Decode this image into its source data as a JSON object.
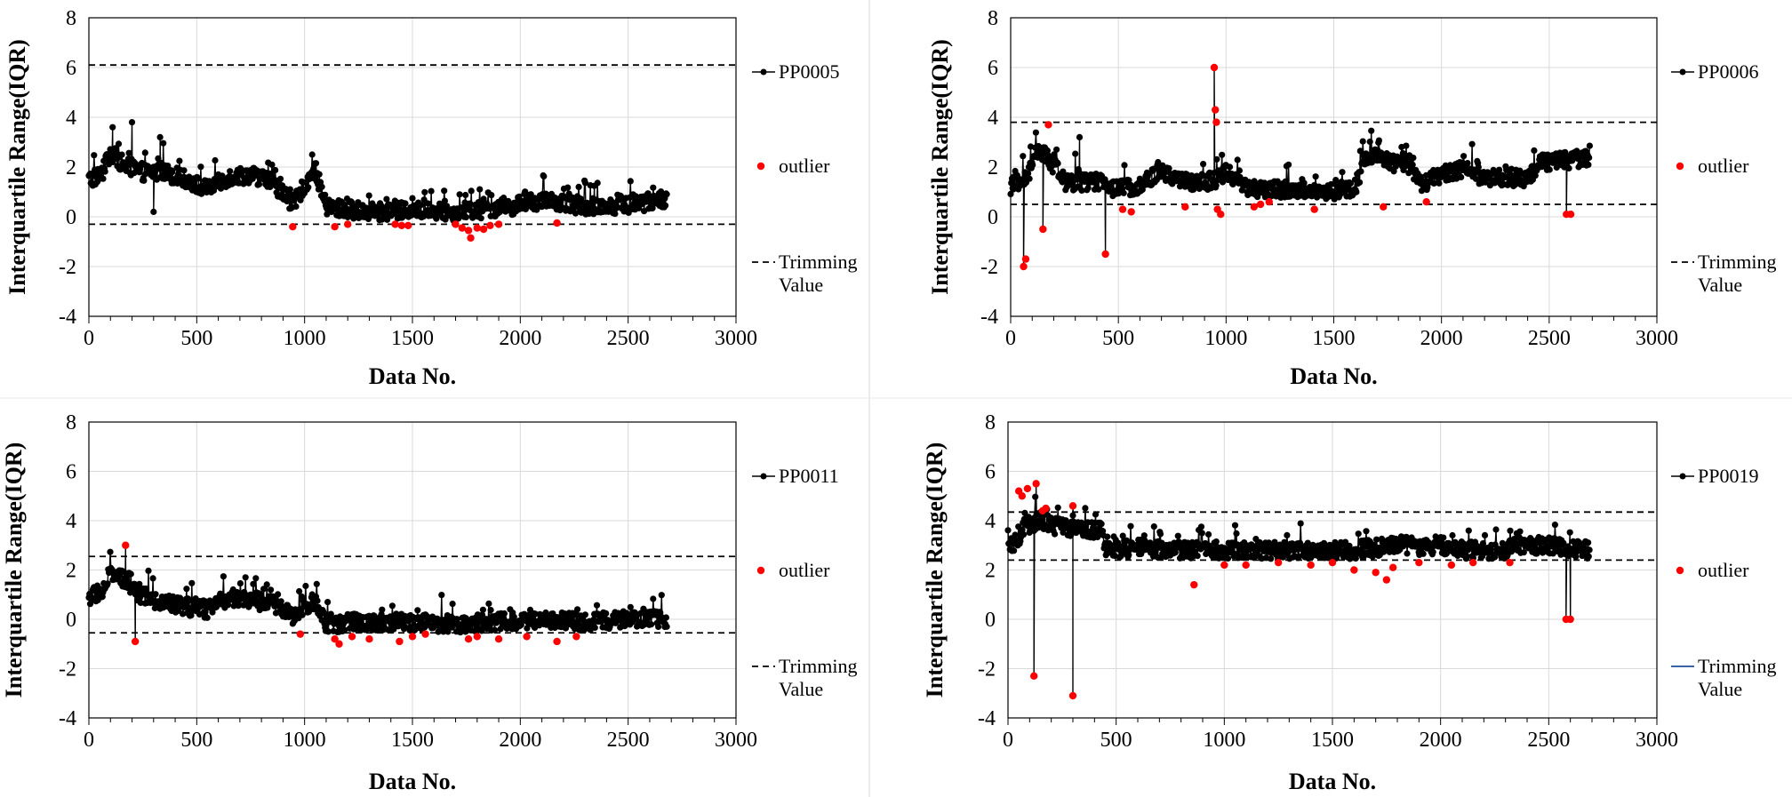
{
  "chart_data": [
    {
      "type": "line",
      "xlabel": "Data No.",
      "ylabel": "Interquartile Range(IQR)",
      "xlim": [
        0,
        3000
      ],
      "ylim": [
        -4,
        8
      ],
      "xticks": [
        "0",
        "500",
        "1000",
        "1500",
        "2000",
        "2500",
        "3000"
      ],
      "yticks": [
        "-4",
        "-2",
        "0",
        "2",
        "4",
        "6",
        "8"
      ],
      "grid": true,
      "legend_position": "right",
      "n_points": 2680,
      "trimming_values": [
        6.1,
        -0.3
      ],
      "trimming_color": "#000000",
      "series": [
        {
          "name": "PP0005",
          "color": "#000000",
          "profile": [
            [
              0,
              1.5
            ],
            [
              60,
              1.7
            ],
            [
              100,
              2.6
            ],
            [
              160,
              2.1
            ],
            [
              250,
              1.8
            ],
            [
              350,
              1.8
            ],
            [
              450,
              1.5
            ],
            [
              550,
              1.1
            ],
            [
              650,
              1.6
            ],
            [
              750,
              1.7
            ],
            [
              850,
              1.4
            ],
            [
              950,
              0.5
            ],
            [
              1000,
              1.3
            ],
            [
              1050,
              1.9
            ],
            [
              1100,
              0.4
            ],
            [
              1300,
              0.2
            ],
            [
              1500,
              0.25
            ],
            [
              1700,
              0.2
            ],
            [
              1900,
              0.35
            ],
            [
              2100,
              0.6
            ],
            [
              2300,
              0.45
            ],
            [
              2500,
              0.45
            ],
            [
              2680,
              0.75
            ]
          ]
        },
        {
          "name": "outlier",
          "color": "#ff0000",
          "points": [
            [
              945,
              -0.4
            ],
            [
              1140,
              -0.4
            ],
            [
              1200,
              -0.3
            ],
            [
              1420,
              -0.3
            ],
            [
              1450,
              -0.35
            ],
            [
              1480,
              -0.35
            ],
            [
              1700,
              -0.3
            ],
            [
              1730,
              -0.45
            ],
            [
              1760,
              -0.55
            ],
            [
              1770,
              -0.85
            ],
            [
              1800,
              -0.45
            ],
            [
              1830,
              -0.5
            ],
            [
              1860,
              -0.35
            ],
            [
              1900,
              -0.3
            ],
            [
              2170,
              -0.25
            ]
          ]
        },
        {
          "name": "Trimming\nValue"
        }
      ],
      "spikes": [
        [
          200,
          3.8
        ],
        [
          110,
          3.6
        ],
        [
          300,
          0.2
        ],
        [
          330,
          3.2
        ]
      ]
    },
    {
      "type": "line",
      "xlabel": "Data No.",
      "ylabel": "Interquartile Range(IQR)",
      "xlim": [
        0,
        3000
      ],
      "ylim": [
        -4,
        8
      ],
      "xticks": [
        "0",
        "500",
        "1000",
        "1500",
        "2000",
        "2500",
        "3000"
      ],
      "yticks": [
        "-4",
        "-2",
        "0",
        "2",
        "4",
        "6",
        "8"
      ],
      "grid": true,
      "legend_position": "right",
      "n_points": 2690,
      "trimming_values": [
        3.8,
        0.5
      ],
      "trimming_color": "#000000",
      "series": [
        {
          "name": "PP0006",
          "color": "#000000",
          "profile": [
            [
              0,
              1.2
            ],
            [
              80,
              1.6
            ],
            [
              120,
              2.7
            ],
            [
              180,
              2.3
            ],
            [
              250,
              1.4
            ],
            [
              400,
              1.4
            ],
            [
              500,
              1.1
            ],
            [
              600,
              1.3
            ],
            [
              700,
              1.8
            ],
            [
              800,
              1.4
            ],
            [
              900,
              1.4
            ],
            [
              950,
              1.5
            ],
            [
              1000,
              1.8
            ],
            [
              1100,
              1.1
            ],
            [
              1300,
              1.1
            ],
            [
              1500,
              1.0
            ],
            [
              1600,
              1.2
            ],
            [
              1650,
              2.5
            ],
            [
              1750,
              2.2
            ],
            [
              1850,
              2.1
            ],
            [
              1900,
              1.3
            ],
            [
              2000,
              1.7
            ],
            [
              2100,
              1.9
            ],
            [
              2200,
              1.6
            ],
            [
              2300,
              1.6
            ],
            [
              2400,
              1.5
            ],
            [
              2450,
              2.2
            ],
            [
              2600,
              2.3
            ],
            [
              2690,
              2.4
            ]
          ]
        },
        {
          "name": "outlier",
          "color": "#ff0000",
          "points": [
            [
              60,
              -2.0
            ],
            [
              70,
              -1.7
            ],
            [
              150,
              -0.5
            ],
            [
              175,
              3.7
            ],
            [
              440,
              -1.5
            ],
            [
              520,
              0.3
            ],
            [
              560,
              0.2
            ],
            [
              810,
              0.4
            ],
            [
              945,
              6.0
            ],
            [
              950,
              4.3
            ],
            [
              955,
              3.8
            ],
            [
              960,
              0.3
            ],
            [
              975,
              0.1
            ],
            [
              1130,
              0.4
            ],
            [
              1160,
              0.5
            ],
            [
              1200,
              0.6
            ],
            [
              1410,
              0.3
            ],
            [
              1730,
              0.4
            ],
            [
              1930,
              0.6
            ],
            [
              2580,
              0.1
            ],
            [
              2600,
              0.1
            ]
          ]
        },
        {
          "name": "Trimming\nValue"
        }
      ],
      "spikes": [
        [
          320,
          3.2
        ],
        [
          945,
          6.0
        ],
        [
          60,
          -2.0
        ],
        [
          440,
          -1.5
        ],
        [
          150,
          -0.5
        ],
        [
          2580,
          0.1
        ]
      ]
    },
    {
      "type": "line",
      "xlabel": "Data No.",
      "ylabel": "Interquartile Range(IQR)",
      "xlim": [
        0,
        3000
      ],
      "ylim": [
        -4,
        8
      ],
      "xticks": [
        "0",
        "500",
        "1000",
        "1500",
        "2000",
        "2500",
        "3000"
      ],
      "yticks": [
        "-4",
        "-2",
        "0",
        "2",
        "4",
        "6",
        "8"
      ],
      "grid": true,
      "legend_position": "right",
      "n_points": 2680,
      "trimming_values": [
        2.55,
        -0.55
      ],
      "trimming_color": "#000000",
      "series": [
        {
          "name": "PP0011",
          "color": "#000000",
          "profile": [
            [
              0,
              0.9
            ],
            [
              60,
              1.1
            ],
            [
              100,
              1.9
            ],
            [
              160,
              1.6
            ],
            [
              250,
              0.9
            ],
            [
              350,
              0.7
            ],
            [
              450,
              0.5
            ],
            [
              550,
              0.4
            ],
            [
              650,
              0.9
            ],
            [
              750,
              0.8
            ],
            [
              850,
              0.6
            ],
            [
              950,
              0.1
            ],
            [
              1000,
              0.6
            ],
            [
              1050,
              0.7
            ],
            [
              1100,
              -0.2
            ],
            [
              1300,
              -0.1
            ],
            [
              1500,
              -0.1
            ],
            [
              1700,
              -0.2
            ],
            [
              1900,
              -0.1
            ],
            [
              2100,
              0.0
            ],
            [
              2300,
              -0.1
            ],
            [
              2500,
              0.0
            ],
            [
              2680,
              0.0
            ]
          ]
        },
        {
          "name": "outlier",
          "color": "#ff0000",
          "points": [
            [
              170,
              3.0
            ],
            [
              215,
              -0.9
            ],
            [
              980,
              -0.6
            ],
            [
              1140,
              -0.8
            ],
            [
              1160,
              -1.0
            ],
            [
              1220,
              -0.7
            ],
            [
              1300,
              -0.8
            ],
            [
              1440,
              -0.9
            ],
            [
              1500,
              -0.7
            ],
            [
              1560,
              -0.6
            ],
            [
              1760,
              -0.8
            ],
            [
              1800,
              -0.7
            ],
            [
              1900,
              -0.8
            ],
            [
              2030,
              -0.7
            ],
            [
              2170,
              -0.9
            ],
            [
              2260,
              -0.7
            ]
          ]
        },
        {
          "name": "Trimming\nValue"
        }
      ],
      "spikes": [
        [
          170,
          3.0
        ],
        [
          215,
          -0.9
        ]
      ]
    },
    {
      "type": "line",
      "xlabel": "Data No.",
      "ylabel": "Interquartile Range(IQR)",
      "xlim": [
        0,
        3000
      ],
      "ylim": [
        -4,
        8
      ],
      "xticks": [
        "0",
        "500",
        "1000",
        "1500",
        "2000",
        "2500",
        "3000"
      ],
      "yticks": [
        "-4",
        "-2",
        "0",
        "2",
        "4",
        "6",
        "8"
      ],
      "grid": true,
      "legend_position": "right",
      "n_points": 2690,
      "trimming_values": [
        4.35,
        2.4
      ],
      "trimming_color": "#1f4e99",
      "series": [
        {
          "name": "PP0019",
          "color": "#000000",
          "profile": [
            [
              0,
              2.8
            ],
            [
              40,
              3.2
            ],
            [
              80,
              3.8
            ],
            [
              150,
              4.0
            ],
            [
              250,
              3.7
            ],
            [
              350,
              3.7
            ],
            [
              440,
              3.6
            ],
            [
              445,
              2.8
            ],
            [
              600,
              2.9
            ],
            [
              800,
              2.8
            ],
            [
              1000,
              2.8
            ],
            [
              1200,
              2.8
            ],
            [
              1400,
              2.8
            ],
            [
              1600,
              2.8
            ],
            [
              1700,
              2.9
            ],
            [
              1800,
              3.1
            ],
            [
              1900,
              2.9
            ],
            [
              2000,
              3.0
            ],
            [
              2100,
              2.8
            ],
            [
              2300,
              2.8
            ],
            [
              2320,
              3.0
            ],
            [
              2500,
              3.0
            ],
            [
              2690,
              2.8
            ]
          ]
        },
        {
          "name": "outlier",
          "color": "#ff0000",
          "points": [
            [
              50,
              5.2
            ],
            [
              65,
              5.0
            ],
            [
              90,
              5.3
            ],
            [
              130,
              5.5
            ],
            [
              160,
              4.4
            ],
            [
              175,
              4.5
            ],
            [
              300,
              4.6
            ],
            [
              120,
              -2.3
            ],
            [
              300,
              -3.1
            ],
            [
              860,
              1.4
            ],
            [
              1000,
              2.2
            ],
            [
              1100,
              2.2
            ],
            [
              1250,
              2.3
            ],
            [
              1400,
              2.2
            ],
            [
              1500,
              2.3
            ],
            [
              1600,
              2.0
            ],
            [
              1700,
              1.9
            ],
            [
              1750,
              1.6
            ],
            [
              1780,
              2.1
            ],
            [
              1900,
              2.3
            ],
            [
              2050,
              2.2
            ],
            [
              2150,
              2.3
            ],
            [
              2320,
              2.3
            ],
            [
              2580,
              0.0
            ],
            [
              2600,
              0.0
            ]
          ]
        },
        {
          "name": "Trimming\nValue"
        }
      ],
      "spikes": [
        [
          120,
          -2.3
        ],
        [
          300,
          -3.1
        ],
        [
          2580,
          0.0
        ],
        [
          2600,
          0.0
        ],
        [
          130,
          5.5
        ],
        [
          300,
          4.6
        ]
      ]
    }
  ]
}
